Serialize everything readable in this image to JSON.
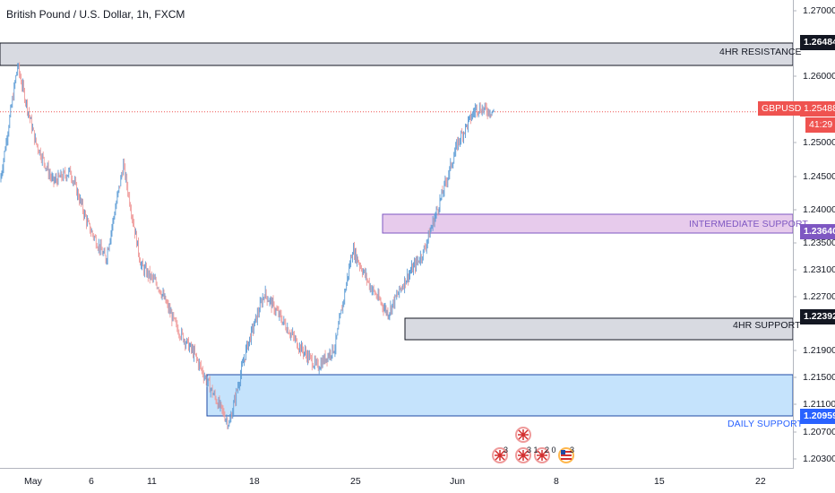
{
  "title": "British Pound / U.S. Dollar, 1h, FXCM",
  "colors": {
    "up": "#5b9bd5",
    "down": "#ef9a9a",
    "resistance_fill": "#d1d4dc",
    "intermediate_fill": "#e1bee7",
    "intermediate_border": "#7e57c2",
    "daily_fill": "#bbdefb",
    "daily_border": "#1e4aa5",
    "price_line": "#ef5350",
    "daily_label": "#2962ff"
  },
  "y_axis": {
    "ticks": [
      "1.27000",
      "1.26000",
      "1.25000",
      "1.24500",
      "1.24000",
      "1.23500",
      "1.23100",
      "1.22700",
      "1.21900",
      "1.21500",
      "1.21100",
      "1.20700",
      "1.20300"
    ]
  },
  "x_axis": {
    "ticks": [
      "May",
      "6",
      "11",
      "18",
      "25",
      "Jun",
      "8",
      "15",
      "22"
    ]
  },
  "zones": {
    "resistance": {
      "label": "4HR RESISTANCE",
      "price": "1.26484"
    },
    "intermediate": {
      "label": "INTERMEDIATE SUPPORT",
      "price": "1.23640"
    },
    "four_hr_support": {
      "label": "4HR SUPPORT",
      "price": "1.22392"
    },
    "daily": {
      "label": "DAILY SUPPORT",
      "price": "1.20959"
    }
  },
  "current": {
    "symbol": "GBPUSD",
    "price": "1.25488",
    "countdown": "41:29"
  },
  "events": {
    "count_a": "3",
    "count_b": "3 1",
    "count_c": "2 0",
    "count_d": "3"
  },
  "chart_data": {
    "type": "line",
    "title": "British Pound / U.S. Dollar, 1h, FXCM",
    "xlabel": "",
    "ylabel": "",
    "x": [
      "Apr 29",
      "May 1",
      "May 2",
      "May 4",
      "May 6",
      "May 8",
      "May 10",
      "May 11",
      "May 12",
      "May 14",
      "May 15",
      "May 16",
      "May 17",
      "May 18",
      "May 19",
      "May 20",
      "May 21",
      "May 22",
      "May 24",
      "May 25",
      "May 26",
      "May 27",
      "May 28",
      "May 29",
      "May 30",
      "May 31",
      "Jun 1",
      "Jun 2",
      "Jun 3"
    ],
    "values": [
      1.2445,
      1.2617,
      1.2505,
      1.2445,
      1.246,
      1.238,
      1.233,
      1.247,
      1.232,
      1.229,
      1.223,
      1.219,
      1.2135,
      1.2085,
      1.22,
      1.228,
      1.224,
      1.22,
      1.217,
      1.22,
      1.2345,
      1.229,
      1.225,
      1.23,
      1.234,
      1.242,
      1.2505,
      1.2555,
      1.2549
    ],
    "ylim": [
      1.2023,
      1.2725
    ],
    "series_up_color": "#5b9bd5",
    "series_down_color": "#ef9a9a"
  }
}
